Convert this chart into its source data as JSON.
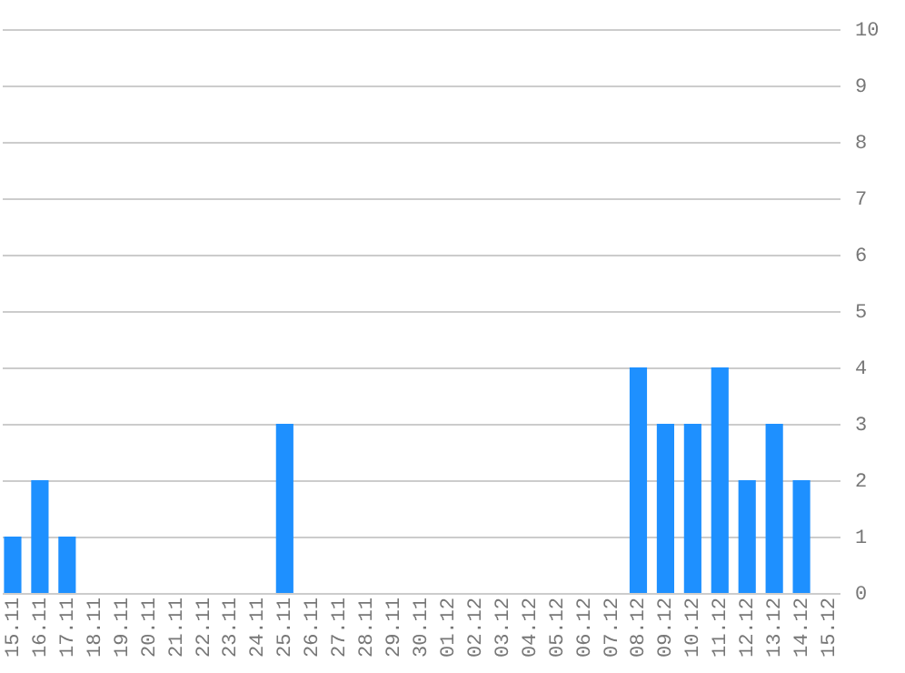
{
  "chart_data": {
    "type": "bar",
    "categories": [
      "15.11",
      "16.11",
      "17.11",
      "18.11",
      "19.11",
      "20.11",
      "21.11",
      "22.11",
      "23.11",
      "24.11",
      "25.11",
      "26.11",
      "27.11",
      "28.11",
      "29.11",
      "30.11",
      "01.12",
      "02.12",
      "03.12",
      "04.12",
      "05.12",
      "06.12",
      "07.12",
      "08.12",
      "09.12",
      "10.12",
      "11.12",
      "12.12",
      "13.12",
      "14.12",
      "15.12"
    ],
    "values": [
      1,
      2,
      1,
      0,
      0,
      0,
      0,
      0,
      0,
      0,
      3,
      0,
      0,
      0,
      0,
      0,
      0,
      0,
      0,
      0,
      0,
      0,
      0,
      4,
      3,
      3,
      4,
      2,
      3,
      2,
      0
    ],
    "color": "#1e90ff",
    "ylim": [
      0,
      10
    ],
    "yticks": [
      0,
      1,
      2,
      3,
      4,
      5,
      6,
      7,
      8,
      9,
      10
    ],
    "grid": "y"
  }
}
